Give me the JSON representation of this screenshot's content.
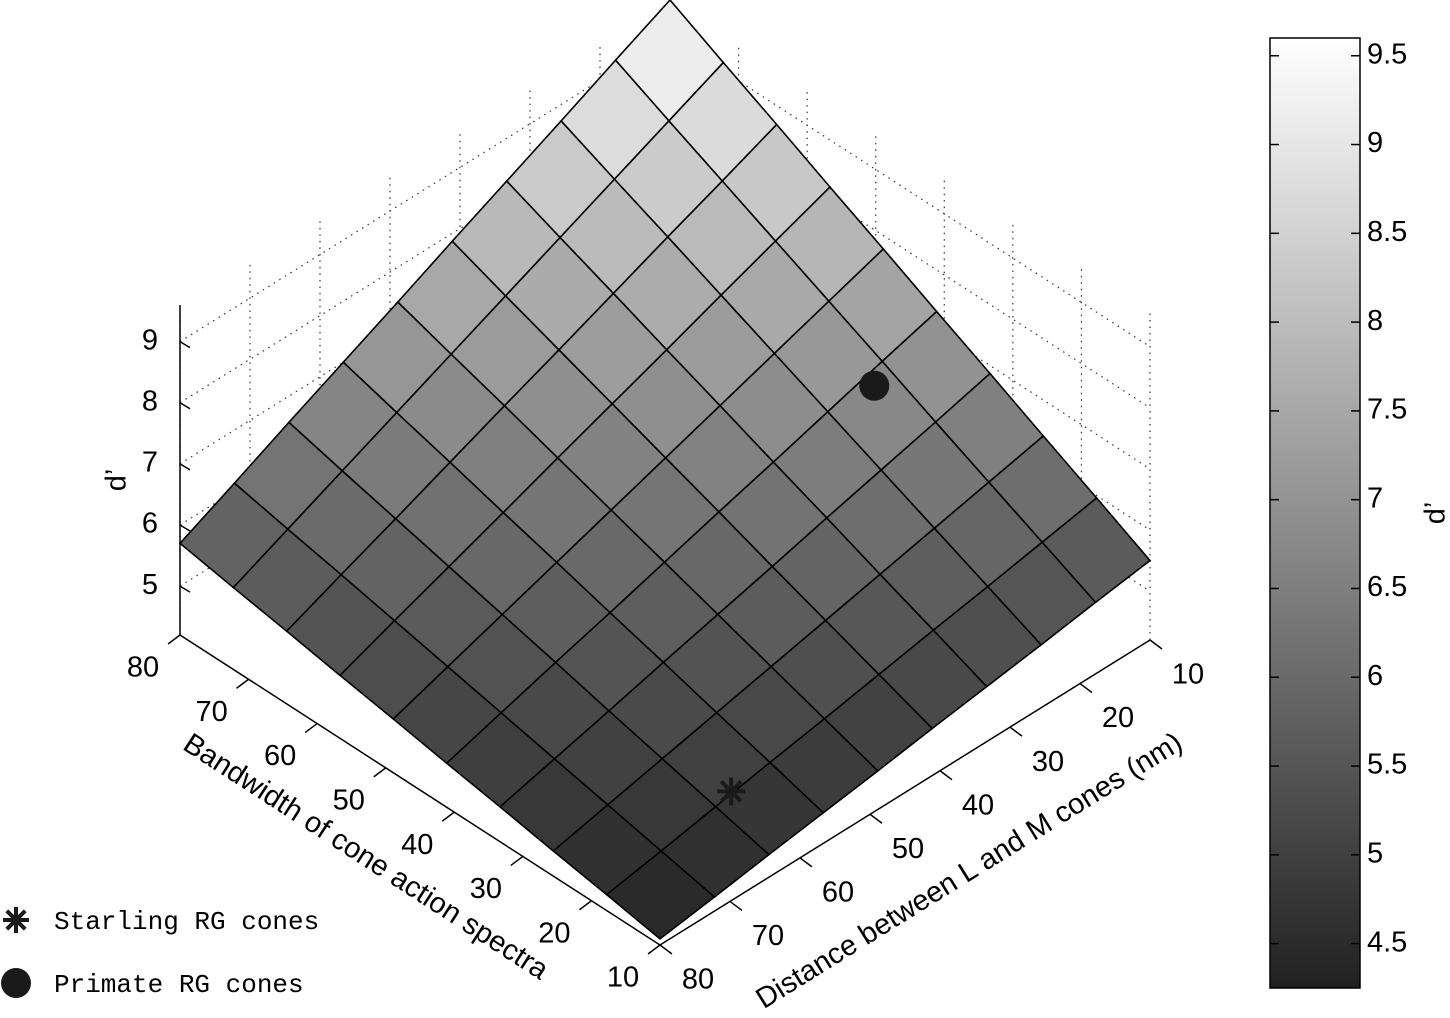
{
  "chart_data": {
    "type": "surface",
    "x_label": "Distance between L and M cones (nm)",
    "y_label": "Bandwidth of cone action spectra",
    "z_label": "d’",
    "colorbar_label": "d’",
    "x": [
      10,
      17.78,
      25.56,
      33.33,
      41.11,
      48.89,
      56.67,
      64.44,
      72.22,
      80
    ],
    "y": [
      10,
      17.78,
      25.56,
      33.33,
      41.11,
      48.89,
      56.67,
      64.44,
      72.22,
      80
    ],
    "z": [
      [
        5.5,
        5.37,
        5.23,
        5.1,
        4.97,
        4.83,
        4.7,
        4.57,
        4.43,
        4.3
      ],
      [
        5.96,
        5.79,
        5.62,
        5.46,
        5.29,
        5.12,
        4.96,
        4.79,
        4.62,
        4.46
      ],
      [
        6.41,
        6.21,
        6.01,
        5.81,
        5.61,
        5.41,
        5.21,
        5.01,
        4.81,
        4.61
      ],
      [
        6.87,
        6.63,
        6.4,
        6.17,
        5.93,
        5.7,
        5.47,
        5.23,
        5.0,
        4.77
      ],
      [
        7.32,
        7.06,
        6.79,
        6.52,
        6.26,
        5.99,
        5.72,
        5.46,
        5.19,
        4.92
      ],
      [
        7.78,
        7.48,
        7.18,
        6.88,
        6.58,
        6.28,
        5.98,
        5.68,
        5.38,
        5.08
      ],
      [
        8.23,
        7.9,
        7.57,
        7.23,
        6.9,
        6.57,
        6.23,
        5.9,
        5.57,
        5.23
      ],
      [
        8.69,
        8.32,
        7.96,
        7.59,
        7.22,
        6.86,
        6.49,
        6.12,
        5.76,
        5.39
      ],
      [
        9.14,
        8.74,
        8.34,
        7.94,
        7.54,
        7.14,
        6.74,
        6.34,
        5.94,
        5.54
      ],
      [
        9.6,
        9.17,
        8.73,
        8.3,
        7.87,
        7.43,
        7.0,
        6.57,
        6.13,
        5.7
      ]
    ],
    "xlim": [
      10,
      80
    ],
    "ylim": [
      10,
      80
    ],
    "zlim": [
      4.2,
      9.6
    ],
    "xticks": [
      10,
      20,
      30,
      40,
      50,
      60,
      70,
      80
    ],
    "yticks": [
      10,
      20,
      30,
      40,
      50,
      60,
      70,
      80
    ],
    "zticks": [
      5,
      6,
      7,
      8,
      9
    ],
    "clim": [
      4.25,
      9.6
    ],
    "cticks": [
      4.5,
      5,
      5.5,
      6,
      6.5,
      7,
      7.5,
      8,
      8.5,
      9,
      9.5
    ],
    "colormap": "gray",
    "grid": true,
    "legend": "bottom-left",
    "markers": [
      {
        "name": "Starling RG cones",
        "x": 62,
        "y": 18,
        "z": 4.85,
        "symbol": "asterisk",
        "color": "#1a1a1a"
      },
      {
        "name": "Primate RG cones",
        "x": 20,
        "y": 40,
        "z": 6.9,
        "symbol": "circle",
        "color": "#1a1a1a"
      }
    ]
  }
}
